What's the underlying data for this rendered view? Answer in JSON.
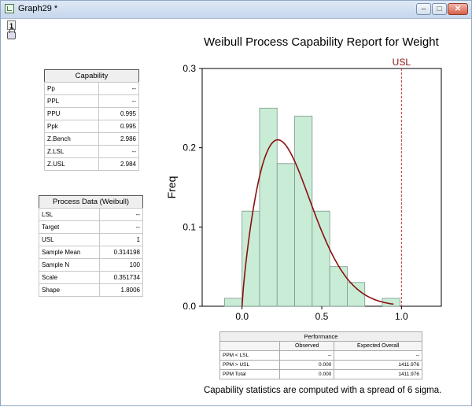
{
  "window": {
    "title": "Graph29 *",
    "layer_number": "1",
    "min_glyph": "–",
    "max_glyph": "□",
    "close_glyph": "✕"
  },
  "title": "Weibull Process Capability Report for Weight",
  "capability": {
    "header": "Capability",
    "rows": [
      {
        "label": "Pp",
        "value": "--"
      },
      {
        "label": "PPL",
        "value": "--"
      },
      {
        "label": "PPU",
        "value": "0.995"
      },
      {
        "label": "Ppk",
        "value": "0.995"
      },
      {
        "label": "Z.Bench",
        "value": "2.986"
      },
      {
        "label": "Z.LSL",
        "value": "--"
      },
      {
        "label": "Z.USL",
        "value": "2.984"
      }
    ]
  },
  "process_data": {
    "header": "Process Data (Weibull)",
    "rows": [
      {
        "label": "LSL",
        "value": "--"
      },
      {
        "label": "Target",
        "value": "--"
      },
      {
        "label": "USL",
        "value": "1"
      },
      {
        "label": "Sample Mean",
        "value": "0.314198"
      },
      {
        "label": "Sample N",
        "value": "100"
      },
      {
        "label": "Scale",
        "value": "0.351734"
      },
      {
        "label": "Shape",
        "value": "1.8006"
      }
    ]
  },
  "performance": {
    "title": "Performance",
    "col_observed": "Observed",
    "col_expected": "Expected Overall",
    "rows": [
      {
        "label": "PPM < LSL",
        "observed": "--",
        "expected": "--"
      },
      {
        "label": "PPM > USL",
        "observed": "0.000",
        "expected": "1411.976"
      },
      {
        "label": "PPM Total",
        "observed": "0.000",
        "expected": "1411.976"
      }
    ]
  },
  "footnote": "Capability statistics are computed with a spread of 6 sigma.",
  "colors": {
    "bar_fill": "#c8ecd6",
    "bar_stroke": "#7a9a8a",
    "curve": "#8b1010",
    "usl_line": "#c03030"
  },
  "chart_data": {
    "type": "bar",
    "ylabel": "Freq",
    "xlabel": "",
    "xlim": [
      -0.25,
      1.25
    ],
    "ylim": [
      0,
      0.3
    ],
    "x_ticks": [
      "0.0",
      "0.5",
      "1.0"
    ],
    "x_tick_values": [
      0,
      0.5,
      1.0
    ],
    "y_ticks": [
      "0.0",
      "0.1",
      "0.2",
      "0.3"
    ],
    "y_tick_values": [
      0,
      0.1,
      0.2,
      0.3
    ],
    "bin_width": 0.11,
    "bins": [
      {
        "x0": -0.11,
        "freq": 0.01
      },
      {
        "x0": 0.0,
        "freq": 0.12
      },
      {
        "x0": 0.11,
        "freq": 0.25
      },
      {
        "x0": 0.22,
        "freq": 0.18
      },
      {
        "x0": 0.33,
        "freq": 0.24
      },
      {
        "x0": 0.44,
        "freq": 0.12
      },
      {
        "x0": 0.55,
        "freq": 0.05
      },
      {
        "x0": 0.66,
        "freq": 0.03
      },
      {
        "x0": 0.88,
        "freq": 0.01
      }
    ],
    "usl": {
      "value": 1.0,
      "label": "USL"
    },
    "weibull": {
      "shape": 1.8006,
      "scale": 0.351734,
      "x_range": [
        0.0,
        0.95
      ]
    }
  }
}
